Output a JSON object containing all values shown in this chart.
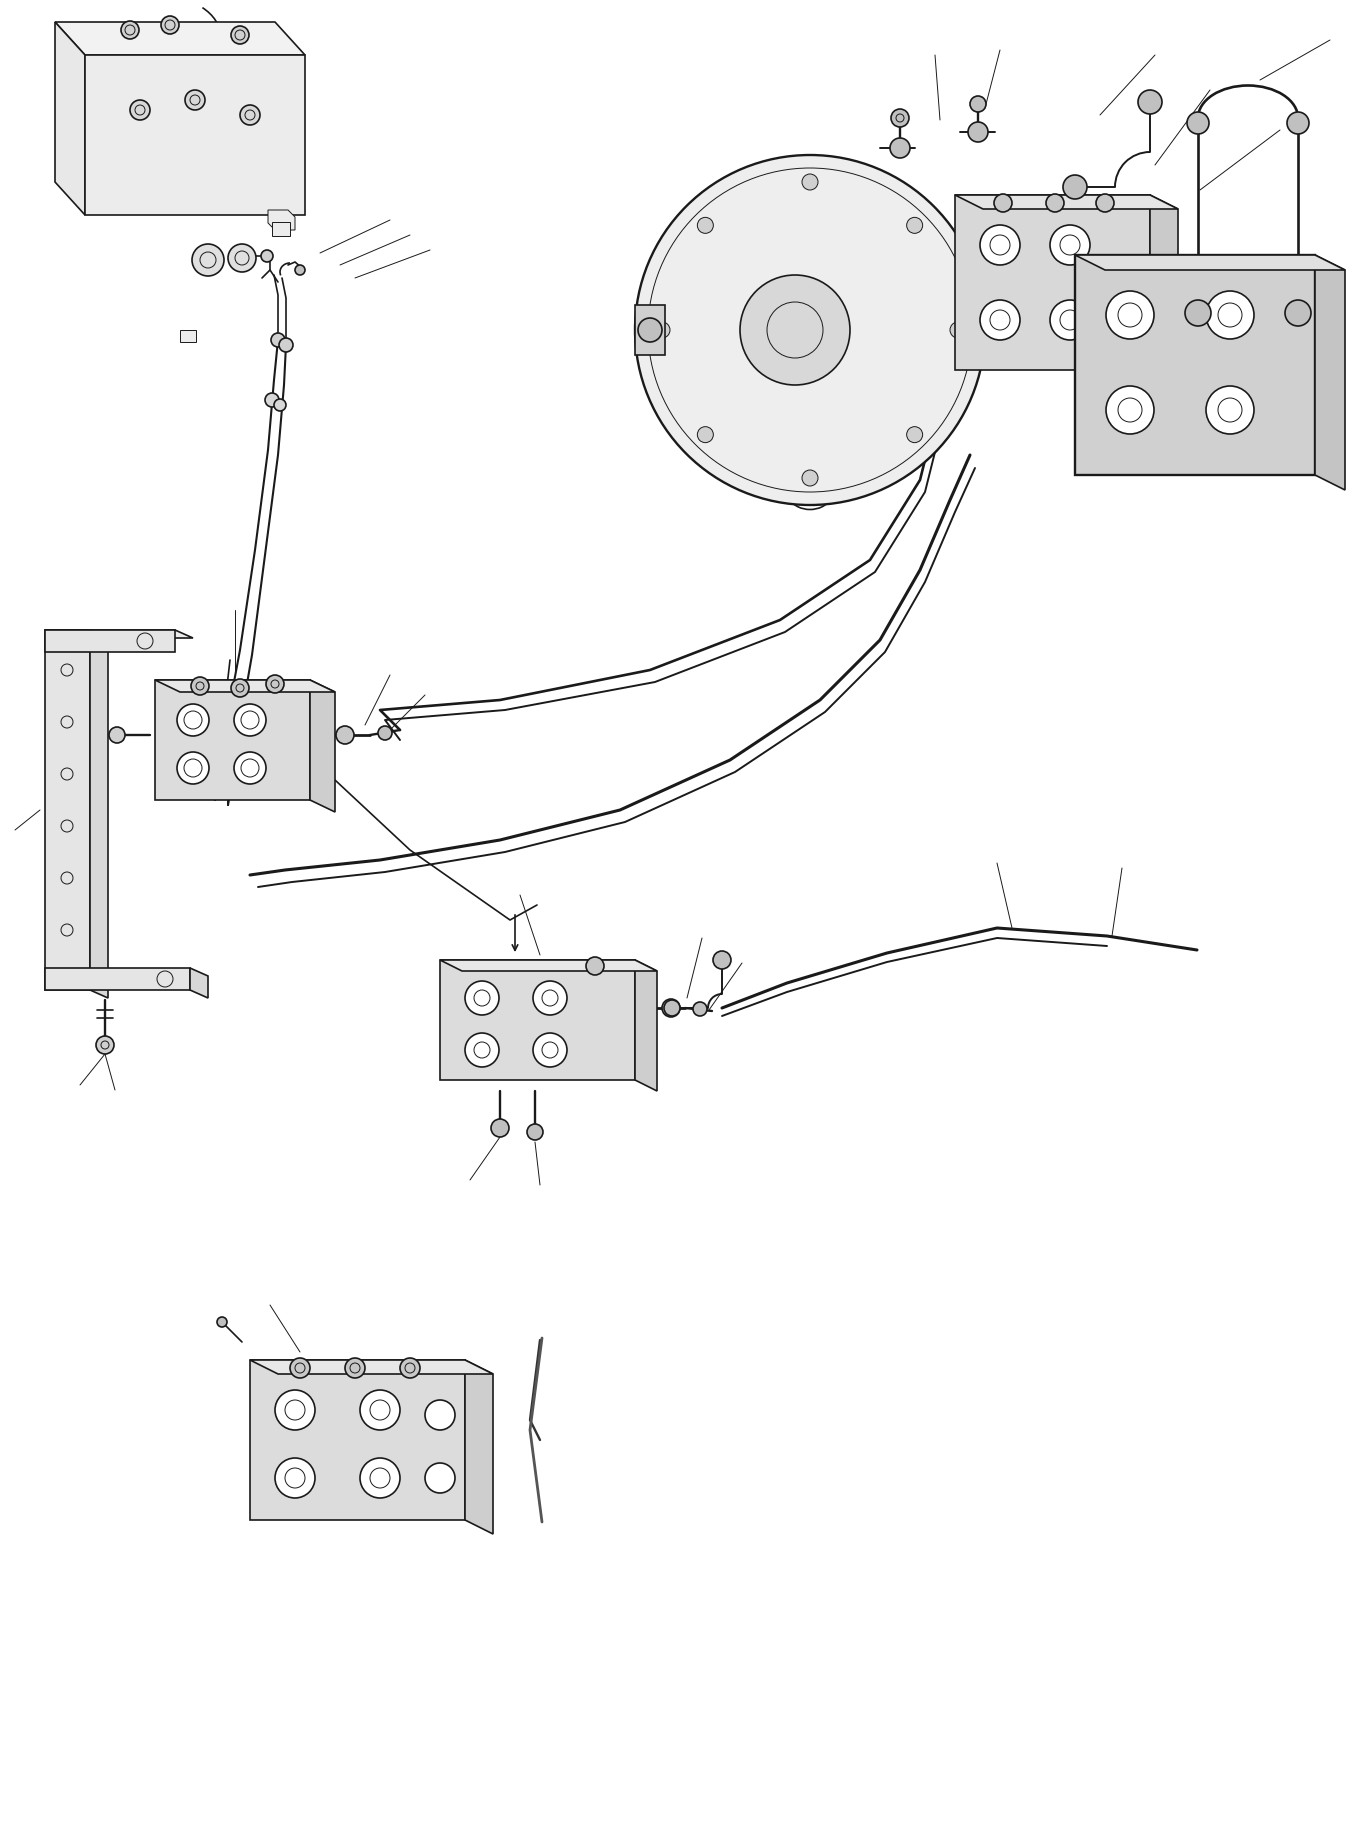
{
  "background_color": "#ffffff",
  "line_color": "#1a1a1a",
  "fig_width": 13.57,
  "fig_height": 18.46,
  "dpi": 100,
  "lw_main": 1.2,
  "lw_thin": 0.7,
  "lw_thick": 1.8,
  "lw_hose": 1.4
}
